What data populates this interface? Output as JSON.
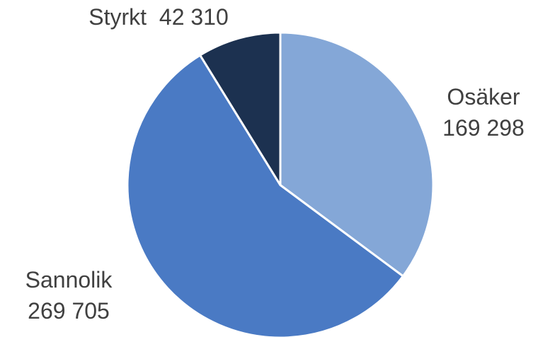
{
  "chart_data": {
    "type": "pie",
    "title": "",
    "categories": [
      "Osäker",
      "Sannolik",
      "Styrkt"
    ],
    "values": [
      169298,
      269705,
      42310
    ],
    "value_labels": [
      "169 298",
      "269 705",
      "42 310"
    ],
    "colors": [
      "#84a7d7",
      "#4a7ac4",
      "#1c3150"
    ],
    "start_angle_deg": 0,
    "direction": "clockwise",
    "legend": "none",
    "data_labels": "outside, category and value"
  }
}
